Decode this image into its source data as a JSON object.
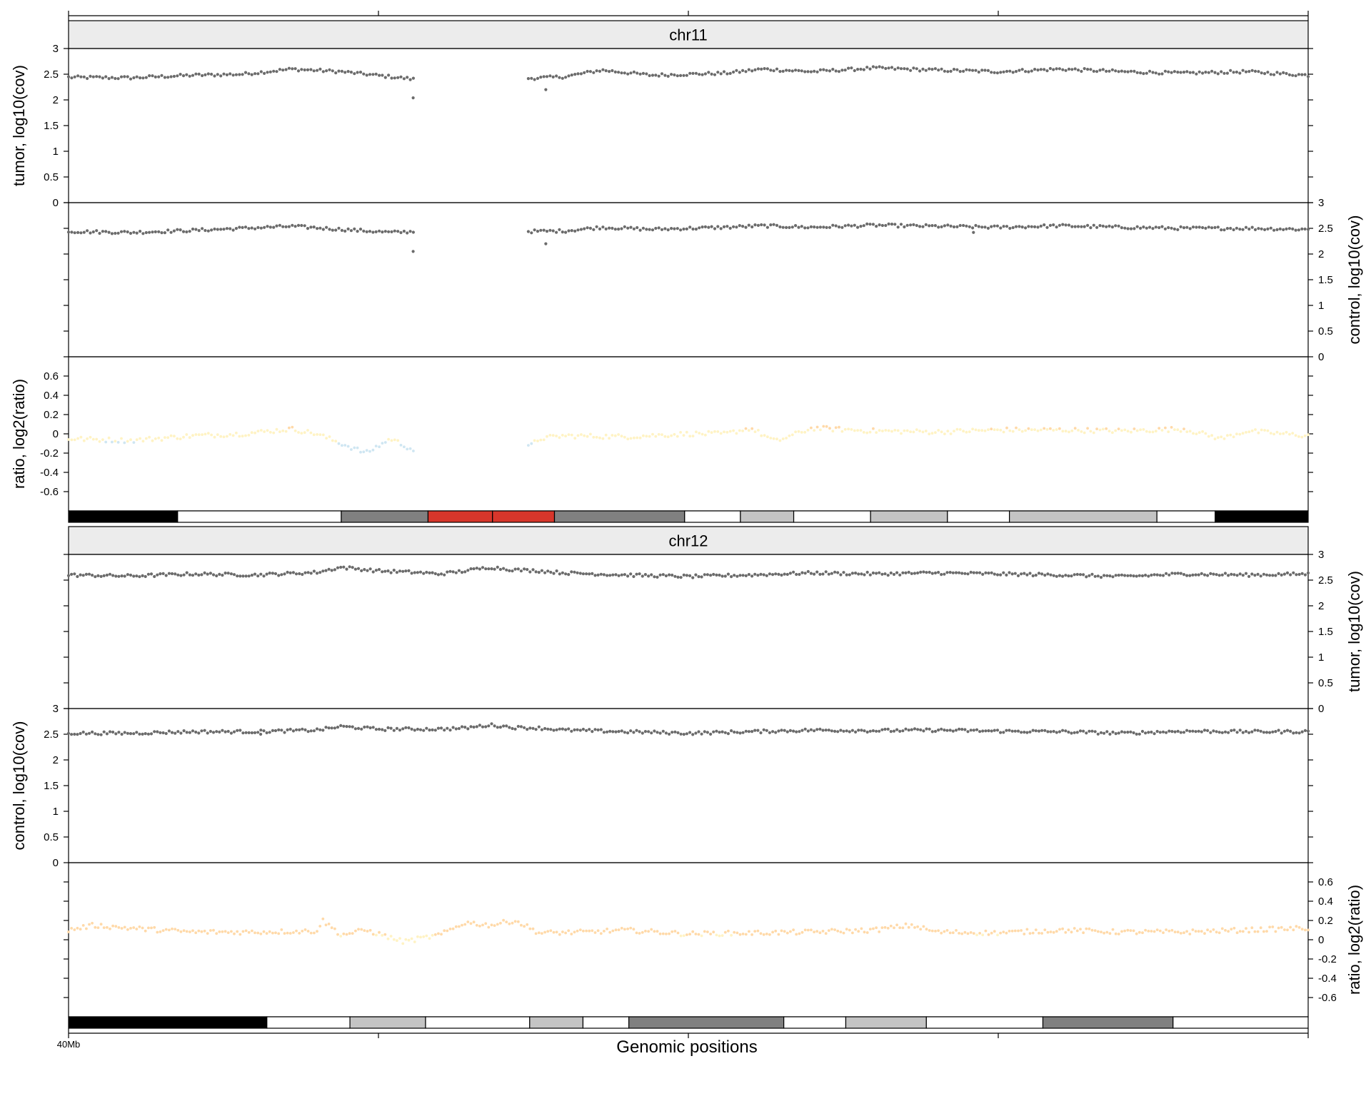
{
  "xlabel": "Genomic positions",
  "x_tick_label": "40Mb",
  "colors": {
    "points": "#6b6b6b",
    "ratio_gain": "#ffd9a8",
    "ratio_neutral": "#fff3c4",
    "ratio_loss": "#cfe6f2",
    "strip_bg": "#ececec",
    "ideogram_red": "#d7362b"
  },
  "chart_data": [
    {
      "type": "scatter",
      "chromosome": "chr11",
      "strip_label": "chr11",
      "panels": [
        {
          "name": "tumor",
          "label": "tumor, log10(cov)",
          "ylim": [
            0,
            3
          ],
          "ticks": [
            "0",
            "0.5",
            "1",
            "1.5",
            "2",
            "2.5",
            "3"
          ],
          "axis_side": "left"
        },
        {
          "name": "control",
          "label": "control, log10(cov)",
          "ylim": [
            0,
            3
          ],
          "ticks": [
            "0",
            "0.5",
            "1",
            "1.5",
            "2",
            "2.5",
            "3"
          ],
          "axis_side": "right"
        },
        {
          "name": "ratio",
          "label": "ratio, log2(ratio)",
          "ylim": [
            -0.8,
            0.8
          ],
          "ticks": [
            "-0.6",
            "-0.4",
            "-0.2",
            "0",
            "0.2",
            "0.4",
            "0.6"
          ],
          "axis_side": "left"
        }
      ],
      "x_range": [
        0,
        1
      ],
      "gaps": [
        [
          0.28,
          0.37
        ]
      ],
      "n_points": 400,
      "anchors": {
        "tumor": [
          [
            0,
            2.44
          ],
          [
            0.05,
            2.43
          ],
          [
            0.1,
            2.48
          ],
          [
            0.14,
            2.5
          ],
          [
            0.18,
            2.6
          ],
          [
            0.22,
            2.55
          ],
          [
            0.26,
            2.45
          ],
          [
            0.28,
            2.4
          ],
          [
            0.37,
            2.42
          ],
          [
            0.4,
            2.45
          ],
          [
            0.43,
            2.58
          ],
          [
            0.47,
            2.48
          ],
          [
            0.5,
            2.5
          ],
          [
            0.53,
            2.52
          ],
          [
            0.56,
            2.6
          ],
          [
            0.6,
            2.55
          ],
          [
            0.65,
            2.62
          ],
          [
            0.7,
            2.58
          ],
          [
            0.75,
            2.55
          ],
          [
            0.8,
            2.6
          ],
          [
            0.85,
            2.55
          ],
          [
            0.9,
            2.52
          ],
          [
            0.95,
            2.55
          ],
          [
            1,
            2.48
          ]
        ],
        "control": [
          [
            0,
            2.44
          ],
          [
            0.05,
            2.42
          ],
          [
            0.1,
            2.46
          ],
          [
            0.14,
            2.5
          ],
          [
            0.18,
            2.54
          ],
          [
            0.22,
            2.48
          ],
          [
            0.26,
            2.42
          ],
          [
            0.28,
            2.44
          ],
          [
            0.37,
            2.44
          ],
          [
            0.4,
            2.45
          ],
          [
            0.43,
            2.52
          ],
          [
            0.47,
            2.48
          ],
          [
            0.5,
            2.5
          ],
          [
            0.53,
            2.52
          ],
          [
            0.56,
            2.55
          ],
          [
            0.6,
            2.52
          ],
          [
            0.65,
            2.56
          ],
          [
            0.7,
            2.54
          ],
          [
            0.75,
            2.52
          ],
          [
            0.8,
            2.55
          ],
          [
            0.85,
            2.52
          ],
          [
            0.9,
            2.5
          ],
          [
            0.95,
            2.5
          ],
          [
            1,
            2.48
          ]
        ],
        "ratio": [
          [
            0,
            -0.05
          ],
          [
            0.05,
            -0.07
          ],
          [
            0.1,
            -0.02
          ],
          [
            0.14,
            0
          ],
          [
            0.18,
            0.05
          ],
          [
            0.2,
            0
          ],
          [
            0.22,
            -0.1
          ],
          [
            0.24,
            -0.2
          ],
          [
            0.26,
            -0.05
          ],
          [
            0.28,
            -0.18
          ],
          [
            0.37,
            -0.15
          ],
          [
            0.38,
            -0.05
          ],
          [
            0.4,
            -0.02
          ],
          [
            0.45,
            -0.03
          ],
          [
            0.5,
            0
          ],
          [
            0.53,
            0
          ],
          [
            0.55,
            0.06
          ],
          [
            0.57,
            -0.08
          ],
          [
            0.6,
            0.06
          ],
          [
            0.65,
            0.03
          ],
          [
            0.7,
            0.02
          ],
          [
            0.75,
            0.04
          ],
          [
            0.8,
            0.04
          ],
          [
            0.85,
            0.03
          ],
          [
            0.9,
            0.05
          ],
          [
            0.93,
            -0.05
          ],
          [
            0.95,
            0.03
          ],
          [
            1,
            -0.02
          ]
        ]
      },
      "outliers": {
        "tumor": [
          [
            0.278,
            2.04
          ],
          [
            0.385,
            2.2
          ]
        ],
        "control": [
          [
            0.278,
            2.05
          ],
          [
            0.385,
            2.2
          ],
          [
            0.73,
            2.42
          ]
        ]
      },
      "ideogram": [
        {
          "start": 0.0,
          "end": 0.088,
          "stain": "black"
        },
        {
          "start": 0.088,
          "end": 0.22,
          "stain": "white"
        },
        {
          "start": 0.22,
          "end": 0.29,
          "stain": "gray-dark"
        },
        {
          "start": 0.29,
          "end": 0.342,
          "stain": "red"
        },
        {
          "start": 0.342,
          "end": 0.392,
          "stain": "red"
        },
        {
          "start": 0.392,
          "end": 0.497,
          "stain": "gray-dark"
        },
        {
          "start": 0.497,
          "end": 0.542,
          "stain": "white"
        },
        {
          "start": 0.542,
          "end": 0.585,
          "stain": "gray-light"
        },
        {
          "start": 0.585,
          "end": 0.647,
          "stain": "white"
        },
        {
          "start": 0.647,
          "end": 0.709,
          "stain": "gray-light"
        },
        {
          "start": 0.709,
          "end": 0.759,
          "stain": "white"
        },
        {
          "start": 0.759,
          "end": 0.878,
          "stain": "gray-light"
        },
        {
          "start": 0.878,
          "end": 0.925,
          "stain": "white"
        },
        {
          "start": 0.925,
          "end": 1.0,
          "stain": "black"
        }
      ]
    },
    {
      "type": "scatter",
      "chromosome": "chr12",
      "strip_label": "chr12",
      "panels": [
        {
          "name": "tumor",
          "label": "tumor, log10(cov)",
          "ylim": [
            0,
            3
          ],
          "ticks": [
            "0",
            "0.5",
            "1",
            "1.5",
            "2",
            "2.5",
            "3"
          ],
          "axis_side": "right"
        },
        {
          "name": "control",
          "label": "control, log10(cov)",
          "ylim": [
            0,
            3
          ],
          "ticks": [
            "0",
            "0.5",
            "1",
            "1.5",
            "2",
            "2.5",
            "3"
          ],
          "axis_side": "left"
        },
        {
          "name": "ratio",
          "label": "ratio, log2(ratio)",
          "ylim": [
            -0.8,
            0.8
          ],
          "ticks": [
            "-0.6",
            "-0.4",
            "-0.2",
            "0",
            "0.2",
            "0.4",
            "0.6"
          ],
          "axis_side": "right"
        }
      ],
      "x_range": [
        0,
        1
      ],
      "gaps": [],
      "n_points": 420,
      "anchors": {
        "tumor": [
          [
            0,
            2.6
          ],
          [
            0.05,
            2.58
          ],
          [
            0.1,
            2.62
          ],
          [
            0.15,
            2.6
          ],
          [
            0.2,
            2.65
          ],
          [
            0.22,
            2.75
          ],
          [
            0.25,
            2.68
          ],
          [
            0.28,
            2.65
          ],
          [
            0.3,
            2.62
          ],
          [
            0.32,
            2.68
          ],
          [
            0.34,
            2.75
          ],
          [
            0.36,
            2.7
          ],
          [
            0.38,
            2.68
          ],
          [
            0.4,
            2.64
          ],
          [
            0.45,
            2.6
          ],
          [
            0.5,
            2.57
          ],
          [
            0.55,
            2.6
          ],
          [
            0.6,
            2.64
          ],
          [
            0.65,
            2.62
          ],
          [
            0.7,
            2.64
          ],
          [
            0.75,
            2.62
          ],
          [
            0.8,
            2.6
          ],
          [
            0.85,
            2.57
          ],
          [
            0.9,
            2.62
          ],
          [
            0.95,
            2.6
          ],
          [
            1,
            2.62
          ]
        ],
        "control": [
          [
            0,
            2.52
          ],
          [
            0.05,
            2.52
          ],
          [
            0.1,
            2.55
          ],
          [
            0.15,
            2.55
          ],
          [
            0.2,
            2.58
          ],
          [
            0.22,
            2.65
          ],
          [
            0.25,
            2.6
          ],
          [
            0.28,
            2.6
          ],
          [
            0.3,
            2.6
          ],
          [
            0.32,
            2.62
          ],
          [
            0.34,
            2.68
          ],
          [
            0.36,
            2.63
          ],
          [
            0.38,
            2.62
          ],
          [
            0.4,
            2.58
          ],
          [
            0.45,
            2.55
          ],
          [
            0.5,
            2.52
          ],
          [
            0.55,
            2.55
          ],
          [
            0.6,
            2.58
          ],
          [
            0.65,
            2.57
          ],
          [
            0.7,
            2.58
          ],
          [
            0.75,
            2.56
          ],
          [
            0.8,
            2.55
          ],
          [
            0.85,
            2.52
          ],
          [
            0.9,
            2.56
          ],
          [
            0.95,
            2.55
          ],
          [
            1,
            2.55
          ]
        ],
        "ratio": [
          [
            0,
            0.1
          ],
          [
            0.02,
            0.15
          ],
          [
            0.05,
            0.12
          ],
          [
            0.1,
            0.08
          ],
          [
            0.15,
            0.08
          ],
          [
            0.2,
            0.09
          ],
          [
            0.205,
            0.2
          ],
          [
            0.22,
            0.05
          ],
          [
            0.24,
            0.1
          ],
          [
            0.27,
            -0.02
          ],
          [
            0.3,
            0.05
          ],
          [
            0.32,
            0.18
          ],
          [
            0.34,
            0.15
          ],
          [
            0.36,
            0.2
          ],
          [
            0.38,
            0.07
          ],
          [
            0.42,
            0.08
          ],
          [
            0.45,
            0.1
          ],
          [
            0.5,
            0.06
          ],
          [
            0.55,
            0.07
          ],
          [
            0.6,
            0.08
          ],
          [
            0.65,
            0.1
          ],
          [
            0.68,
            0.15
          ],
          [
            0.7,
            0.08
          ],
          [
            0.75,
            0.07
          ],
          [
            0.8,
            0.1
          ],
          [
            0.85,
            0.08
          ],
          [
            0.9,
            0.08
          ],
          [
            0.95,
            0.1
          ],
          [
            1,
            0.12
          ]
        ]
      },
      "outliers": {
        "tumor": [],
        "control": [
          [
            0.155,
            2.5
          ]
        ]
      },
      "ideogram": [
        {
          "start": 0.0,
          "end": 0.16,
          "stain": "black"
        },
        {
          "start": 0.16,
          "end": 0.227,
          "stain": "white"
        },
        {
          "start": 0.227,
          "end": 0.288,
          "stain": "gray-light"
        },
        {
          "start": 0.288,
          "end": 0.372,
          "stain": "white"
        },
        {
          "start": 0.372,
          "end": 0.415,
          "stain": "gray-light"
        },
        {
          "start": 0.415,
          "end": 0.452,
          "stain": "white"
        },
        {
          "start": 0.452,
          "end": 0.577,
          "stain": "gray-dark"
        },
        {
          "start": 0.577,
          "end": 0.627,
          "stain": "white"
        },
        {
          "start": 0.627,
          "end": 0.692,
          "stain": "gray-light"
        },
        {
          "start": 0.692,
          "end": 0.786,
          "stain": "white"
        },
        {
          "start": 0.786,
          "end": 0.891,
          "stain": "gray-dark"
        },
        {
          "start": 0.891,
          "end": 1.0,
          "stain": "white"
        }
      ]
    }
  ]
}
